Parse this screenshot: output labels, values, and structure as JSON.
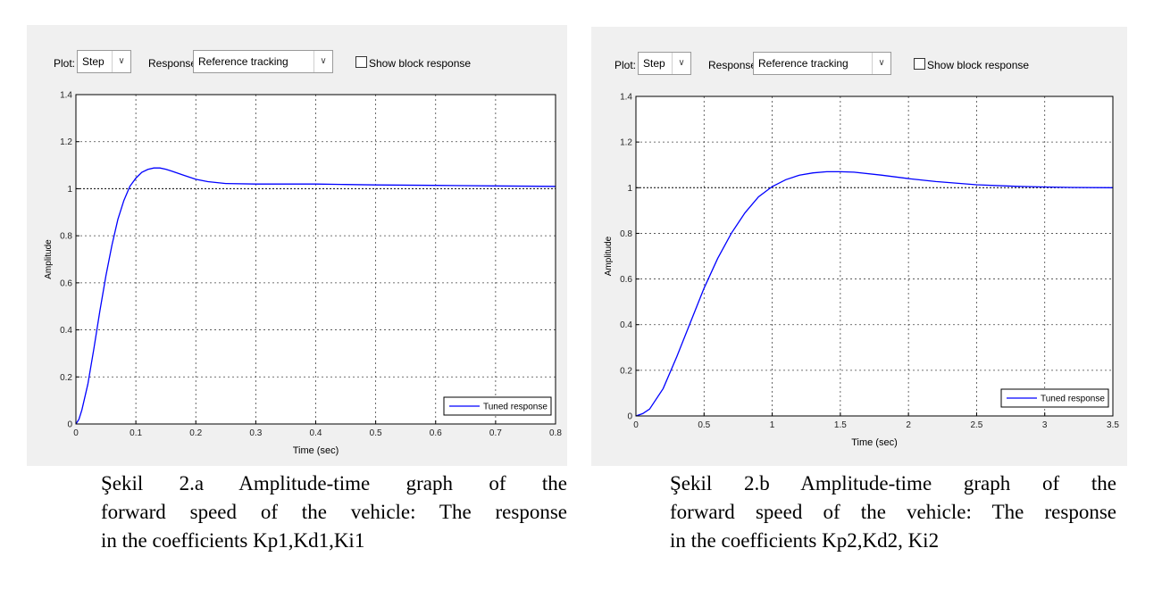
{
  "panels": [
    {
      "toolbar": {
        "plot_label": "Plot:",
        "plot_value": "Step",
        "response_label": "Response:",
        "response_value": "Reference tracking",
        "checkbox_label": "Show block response"
      },
      "chart": {
        "xlabel": "Time (sec)",
        "ylabel": "Amplitude",
        "legend": "Tuned response"
      },
      "caption": {
        "line1": "Şekil 2.a Amplitude-time graph of the",
        "line2": "forward speed of the vehicle: The response",
        "line3": "in the coefficients Kp1,Kd1,Ki1"
      }
    },
    {
      "toolbar": {
        "plot_label": "Plot:",
        "plot_value": "Step",
        "response_label": "Response:",
        "response_value": "Reference tracking",
        "checkbox_label": "Show block response"
      },
      "chart": {
        "xlabel": "Time (sec)",
        "ylabel": "Amplitude",
        "legend": "Tuned response"
      },
      "caption": {
        "line1": "Şekil 2.b Amplitude-time graph of the",
        "line2": "forward speed of the vehicle: The response",
        "line3": "in the coefficients Kp2,Kd2, Ki2"
      }
    }
  ],
  "chart_data": [
    {
      "type": "line",
      "title": "",
      "xlabel": "Time (sec)",
      "ylabel": "Amplitude",
      "xlim": [
        0,
        0.8
      ],
      "ylim": [
        0,
        1.4
      ],
      "xticks": [
        "0",
        "0.1",
        "0.2",
        "0.3",
        "0.4",
        "0.5",
        "0.6",
        "0.7",
        "0.8"
      ],
      "yticks": [
        "0",
        "0.2",
        "0.4",
        "0.6",
        "0.8",
        "1",
        "1.2",
        "1.4"
      ],
      "grid": true,
      "reference": 1,
      "legend": [
        "Tuned response"
      ],
      "legend_position": "bottom-right",
      "series": [
        {
          "name": "Tuned response",
          "color": "#0000ff",
          "x": [
            0,
            0.005,
            0.01,
            0.02,
            0.03,
            0.04,
            0.05,
            0.06,
            0.07,
            0.08,
            0.09,
            0.1,
            0.11,
            0.12,
            0.13,
            0.14,
            0.15,
            0.16,
            0.18,
            0.2,
            0.22,
            0.25,
            0.3,
            0.35,
            0.4,
            0.45,
            0.5,
            0.6,
            0.7,
            0.8
          ],
          "y": [
            0,
            0.02,
            0.06,
            0.17,
            0.32,
            0.48,
            0.63,
            0.76,
            0.87,
            0.95,
            1.01,
            1.045,
            1.07,
            1.082,
            1.088,
            1.088,
            1.083,
            1.075,
            1.057,
            1.04,
            1.03,
            1.022,
            1.02,
            1.02,
            1.02,
            1.018,
            1.016,
            1.014,
            1.012,
            1.01
          ]
        }
      ]
    },
    {
      "type": "line",
      "title": "",
      "xlabel": "Time (sec)",
      "ylabel": "Amplitude",
      "xlim": [
        0,
        3.5
      ],
      "ylim": [
        0,
        1.4
      ],
      "xticks": [
        "0",
        "0.5",
        "1",
        "1.5",
        "2",
        "2.5",
        "3",
        "3.5"
      ],
      "yticks": [
        "0",
        "0.2",
        "0.4",
        "0.6",
        "0.8",
        "1",
        "1.2",
        "1.4"
      ],
      "grid": true,
      "reference": 1,
      "legend": [
        "Tuned response"
      ],
      "legend_position": "bottom-right",
      "series": [
        {
          "name": "Tuned response",
          "color": "#0000ff",
          "x": [
            0,
            0.05,
            0.1,
            0.2,
            0.3,
            0.4,
            0.5,
            0.6,
            0.7,
            0.8,
            0.9,
            1.0,
            1.1,
            1.2,
            1.3,
            1.4,
            1.5,
            1.6,
            1.8,
            2.0,
            2.2,
            2.5,
            2.8,
            3.0,
            3.2,
            3.5
          ],
          "y": [
            0,
            0.01,
            0.03,
            0.12,
            0.26,
            0.41,
            0.56,
            0.69,
            0.8,
            0.89,
            0.96,
            1.005,
            1.035,
            1.055,
            1.065,
            1.07,
            1.07,
            1.068,
            1.055,
            1.04,
            1.027,
            1.013,
            1.006,
            1.003,
            1.001,
            1.0
          ]
        }
      ]
    }
  ]
}
